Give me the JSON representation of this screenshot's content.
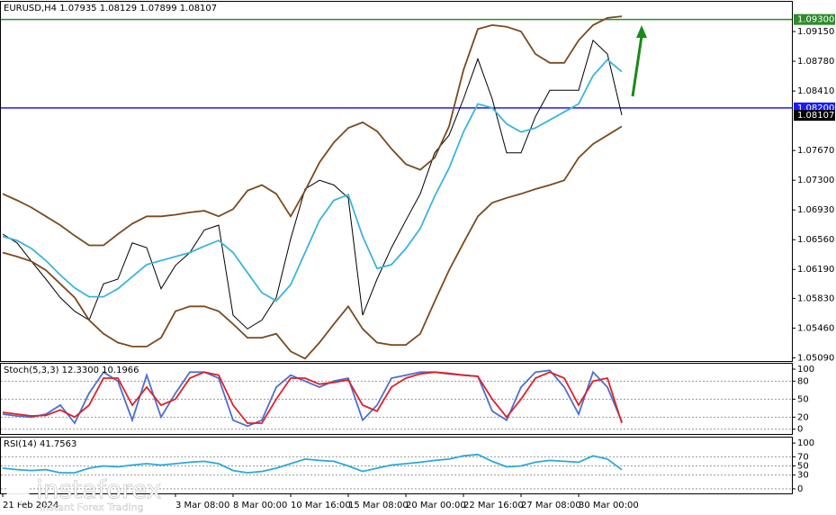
{
  "chart_data": [
    {
      "type": "line",
      "title": "EURUSD,H4  1.07935 1.08129 1.07899 1.08107",
      "categories": [
        "21 Feb 2024",
        null,
        null,
        null,
        null,
        null,
        null,
        null,
        null,
        null,
        null,
        null,
        "3 Mar 08:00",
        null,
        null,
        null,
        "8 Mar 00:00",
        null,
        null,
        null,
        "10 Mar 16:00",
        null,
        null,
        null,
        "15 Mar 08:00",
        null,
        null,
        null,
        "20 Mar 00:00",
        null,
        null,
        null,
        "22 Mar 16:00",
        null,
        null,
        null,
        "27 Mar 08:00",
        null,
        null,
        null,
        "30 Mar 00:00",
        null,
        null,
        null
      ],
      "series": [
        {
          "color": "#000000",
          "values": [
            1.0663,
            1.0652,
            1.0629,
            1.0607,
            1.0584,
            1.0567,
            1.0556,
            1.0601,
            1.0607,
            1.0652,
            1.0646,
            1.0595,
            1.0624,
            1.064,
            1.0668,
            1.0674,
            1.0562,
            1.0545,
            1.0556,
            1.0584,
            1.0657,
            1.0719,
            1.073,
            1.0724,
            1.0708,
            1.0562,
            1.0607,
            1.0646,
            1.068,
            1.0713,
            1.0764,
            1.0786,
            1.0831,
            1.0881,
            1.0831,
            1.0764,
            1.0764,
            1.0809,
            1.0842,
            1.0842,
            1.0842,
            1.0904,
            1.0887,
            1.0811
          ]
        },
        {
          "color": "#7b4a1e",
          "values": [
            1.0713,
            1.0705,
            1.0696,
            1.0685,
            1.0674,
            1.0661,
            1.0649,
            1.0649,
            1.0663,
            1.0676,
            1.0685,
            1.0685,
            1.0687,
            1.069,
            1.0692,
            1.0685,
            1.0694,
            1.0717,
            1.0724,
            1.0713,
            1.0685,
            1.0717,
            1.0752,
            1.0777,
            1.0795,
            1.0802,
            1.0791,
            1.0769,
            1.075,
            1.0743,
            1.0758,
            1.0797,
            1.0867,
            1.0918,
            1.0923,
            1.0921,
            1.0915,
            1.0887,
            1.0876,
            1.0876,
            1.0904,
            1.0923,
            1.0932,
            1.0934
          ]
        },
        {
          "color": "#7b4a1e",
          "values": [
            1.064,
            1.0635,
            1.0629,
            1.0618,
            1.0601,
            1.0584,
            1.0556,
            1.0539,
            1.0528,
            1.0523,
            1.0523,
            1.0534,
            1.0567,
            1.0573,
            1.0573,
            1.0567,
            1.0551,
            1.0534,
            1.0534,
            1.0539,
            1.0517,
            1.0508,
            1.0528,
            1.0551,
            1.0573,
            1.0545,
            1.0528,
            1.0525,
            1.0525,
            1.0539,
            1.0579,
            1.0618,
            1.0652,
            1.0685,
            1.0702,
            1.0708,
            1.0713,
            1.0719,
            1.0724,
            1.073,
            1.0758,
            1.0775,
            1.0786,
            1.0797
          ]
        },
        {
          "color": "#3cb4dc",
          "values": [
            1.066,
            1.0655,
            1.0645,
            1.063,
            1.0612,
            1.0596,
            1.0585,
            1.0585,
            1.0595,
            1.061,
            1.0625,
            1.063,
            1.0635,
            1.064,
            1.0648,
            1.0655,
            1.064,
            1.0615,
            1.059,
            1.058,
            1.06,
            1.064,
            1.068,
            1.0705,
            1.0712,
            1.066,
            1.062,
            1.0625,
            1.0645,
            1.067,
            1.071,
            1.0745,
            1.079,
            1.0825,
            1.082,
            1.08,
            1.079,
            1.0795,
            1.0805,
            1.0815,
            1.0825,
            1.086,
            1.088,
            1.0865
          ]
        }
      ],
      "levels": [
        {
          "value": 1.093,
          "label": "1.09300",
          "color": "#2e8b2e"
        },
        {
          "value": 1.082,
          "label": "1.08200",
          "color": "#1a1aff"
        }
      ],
      "last_price": {
        "value": 1.08107,
        "label": "1.08107"
      },
      "ylim": [
        1.0505,
        1.0952
      ],
      "yticks": [
        {
          "value": 1.0915,
          "label": "1.09150"
        },
        {
          "value": 1.0878,
          "label": "1.08780"
        },
        {
          "value": 1.0841,
          "label": "1.08410"
        },
        {
          "value": 1.0767,
          "label": "1.07670"
        },
        {
          "value": 1.073,
          "label": "1.07300"
        },
        {
          "value": 1.0693,
          "label": "1.06930"
        },
        {
          "value": 1.0656,
          "label": "1.06560"
        },
        {
          "value": 1.0619,
          "label": "1.06190"
        },
        {
          "value": 1.0583,
          "label": "1.05830"
        },
        {
          "value": 1.0546,
          "label": "1.05460"
        },
        {
          "value": 1.0509,
          "label": "1.05090"
        }
      ]
    },
    {
      "type": "line",
      "title": "Stoch(5,3,3) 12.3300 10.1966",
      "series": [
        {
          "color": "#4a6fd0",
          "values": [
            25,
            22,
            20,
            25,
            40,
            10,
            60,
            95,
            80,
            15,
            90,
            20,
            60,
            95,
            95,
            85,
            15,
            5,
            15,
            70,
            90,
            80,
            70,
            80,
            85,
            15,
            40,
            85,
            90,
            95,
            95,
            92,
            90,
            88,
            30,
            15,
            70,
            95,
            98,
            70,
            25,
            95,
            70,
            12.33
          ]
        },
        {
          "color": "#e0202a",
          "values": [
            28,
            25,
            22,
            23,
            32,
            20,
            40,
            85,
            85,
            40,
            70,
            40,
            50,
            85,
            95,
            90,
            40,
            10,
            10,
            50,
            85,
            85,
            75,
            78,
            82,
            40,
            30,
            70,
            85,
            92,
            95,
            93,
            90,
            88,
            50,
            20,
            50,
            85,
            95,
            85,
            40,
            80,
            85,
            10.1966
          ]
        }
      ],
      "ylim": [
        -8,
        109
      ],
      "yticks": [
        100,
        80,
        50,
        20,
        0
      ]
    },
    {
      "type": "line",
      "title": "RSI(14) 41.7563",
      "series": [
        {
          "color": "#2aa9d8",
          "values": [
            45,
            42,
            40,
            42,
            35,
            35,
            45,
            50,
            48,
            52,
            55,
            52,
            55,
            58,
            60,
            55,
            40,
            35,
            38,
            45,
            55,
            65,
            62,
            60,
            50,
            38,
            45,
            52,
            55,
            58,
            62,
            65,
            72,
            75,
            60,
            48,
            50,
            58,
            62,
            60,
            58,
            72,
            65,
            41.7563
          ]
        }
      ],
      "ylim": [
        -10,
        112
      ],
      "yticks": [
        100,
        70,
        50,
        30,
        0
      ]
    }
  ],
  "watermark": {
    "name": "instaforex",
    "tagline": "Instant Forex Trading"
  }
}
